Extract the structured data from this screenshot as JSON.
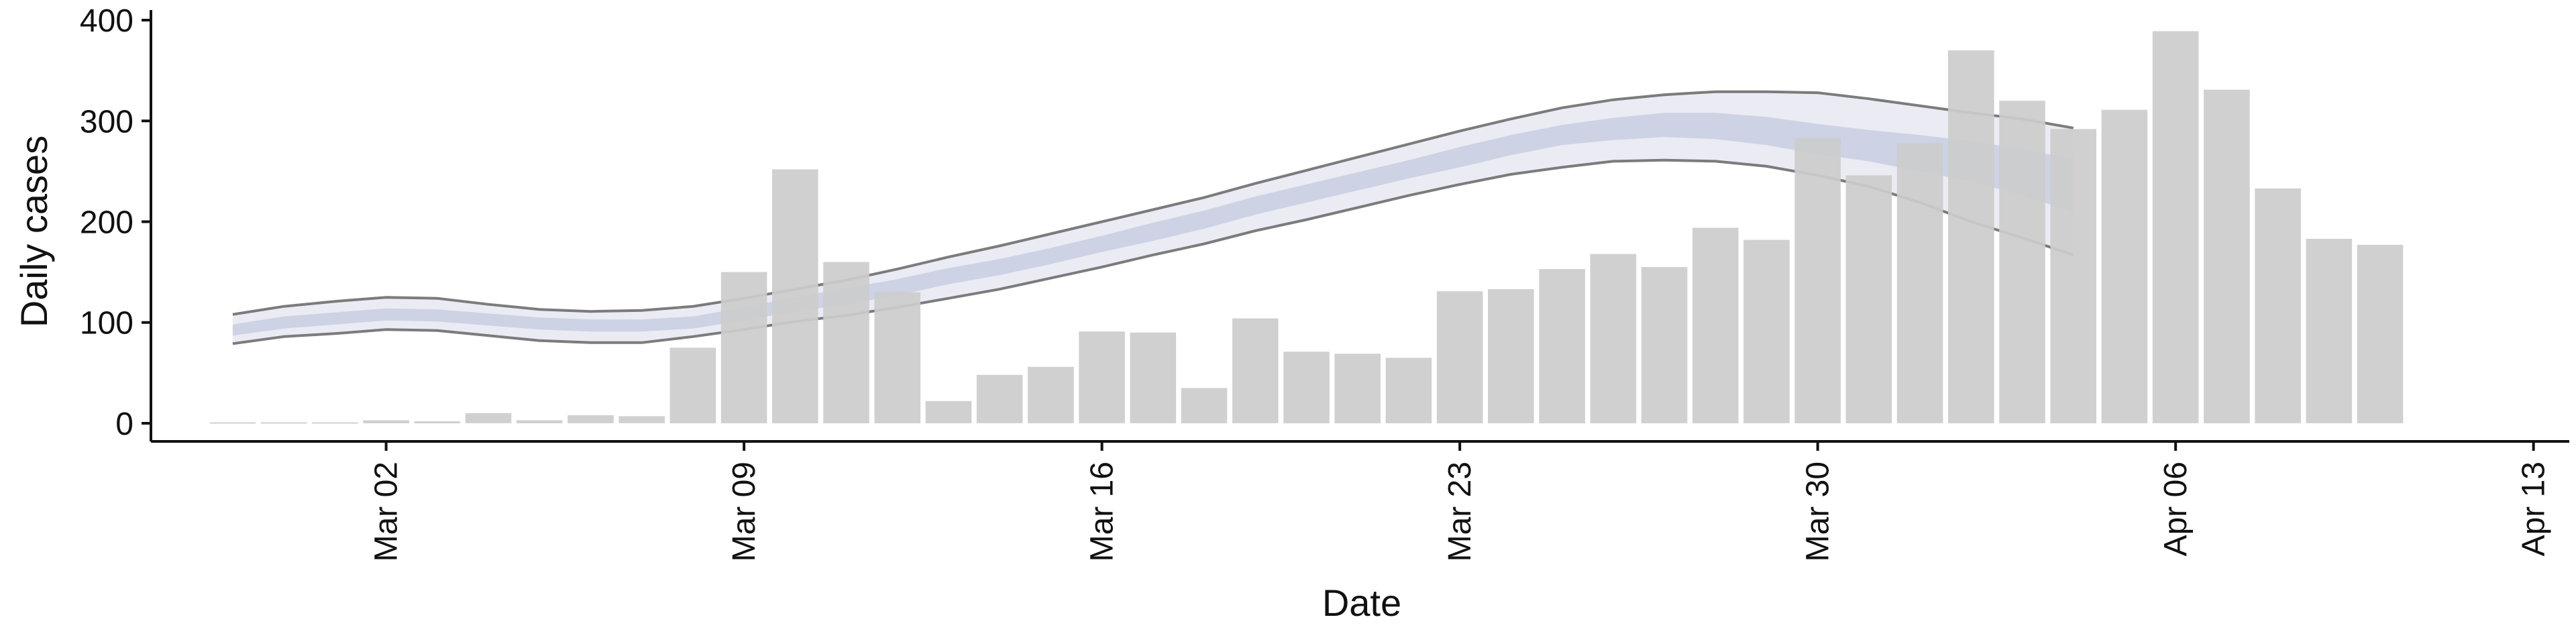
{
  "chart_data": {
    "type": "bar",
    "title": "",
    "xlabel": "Date",
    "ylabel": "Daily cases",
    "ylim": [
      -18,
      410
    ],
    "y_ticks": [
      0,
      100,
      200,
      300,
      400
    ],
    "x_start": "2020-02-28",
    "x_range_days": [
      -1.6,
      45.7
    ],
    "x_ticks": [
      {
        "label": "Mar 02",
        "day": 3
      },
      {
        "label": "Mar 09",
        "day": 10
      },
      {
        "label": "Mar 16",
        "day": 17
      },
      {
        "label": "Mar 23",
        "day": 24
      },
      {
        "label": "Mar 30",
        "day": 31
      },
      {
        "label": "Apr 06",
        "day": 38
      },
      {
        "label": "Apr 13",
        "day": 45
      }
    ],
    "bars": {
      "color": "#cccccc",
      "dates": [
        "Feb 28",
        "Feb 29",
        "Mar 01",
        "Mar 02",
        "Mar 03",
        "Mar 04",
        "Mar 05",
        "Mar 06",
        "Mar 07",
        "Mar 08",
        "Mar 09",
        "Mar 10",
        "Mar 11",
        "Mar 12",
        "Mar 13",
        "Mar 14",
        "Mar 15",
        "Mar 16",
        "Mar 17",
        "Mar 18",
        "Mar 19",
        "Mar 20",
        "Mar 21",
        "Mar 22",
        "Mar 23",
        "Mar 24",
        "Mar 25",
        "Mar 26",
        "Mar 27",
        "Mar 28",
        "Mar 29",
        "Mar 30",
        "Mar 31",
        "Apr 01",
        "Apr 02",
        "Apr 03",
        "Apr 04",
        "Apr 05",
        "Apr 06",
        "Apr 07",
        "Apr 08",
        "Apr 09",
        "Apr 10",
        "Apr 11",
        "Apr 12"
      ],
      "values": [
        1,
        1,
        1,
        3,
        2,
        10,
        3,
        8,
        7,
        75,
        150,
        252,
        160,
        130,
        22,
        48,
        56,
        91,
        90,
        35,
        104,
        71,
        69,
        65,
        131,
        133,
        153,
        168,
        155,
        194,
        182,
        283,
        246,
        278,
        370,
        320,
        292,
        311,
        389,
        331,
        233,
        183,
        177,
        0,
        0
      ]
    },
    "estimate_band": {
      "days": [
        0,
        1,
        2,
        3,
        4,
        5,
        6,
        7,
        8,
        9,
        10,
        11,
        12,
        13,
        14,
        15,
        16,
        17,
        18,
        19,
        20,
        21,
        22,
        23,
        24,
        25,
        26,
        27,
        28,
        29,
        30,
        31,
        32,
        33,
        34,
        35,
        36
      ],
      "median": [
        92,
        100,
        104,
        108,
        107,
        103,
        99,
        97,
        97,
        100,
        108,
        118,
        126,
        135,
        146,
        155,
        166,
        178,
        190,
        202,
        216,
        228,
        240,
        252,
        264,
        276,
        286,
        292,
        296,
        295,
        290,
        282,
        275,
        269,
        262,
        252,
        238
      ],
      "inner_lower": [
        87,
        94,
        98,
        102,
        101,
        97,
        93,
        91,
        91,
        94,
        102,
        111,
        118,
        127,
        138,
        147,
        158,
        170,
        181,
        193,
        207,
        219,
        231,
        243,
        254,
        266,
        276,
        281,
        284,
        282,
        276,
        267,
        260,
        250,
        240,
        226,
        210
      ],
      "inner_upper": [
        98,
        106,
        110,
        114,
        113,
        109,
        105,
        103,
        103,
        106,
        115,
        125,
        134,
        143,
        154,
        163,
        174,
        186,
        199,
        211,
        225,
        237,
        249,
        261,
        274,
        286,
        296,
        303,
        308,
        308,
        304,
        297,
        291,
        286,
        280,
        272,
        262
      ],
      "outer_lower": [
        79,
        86,
        89,
        93,
        92,
        87,
        82,
        80,
        80,
        86,
        93,
        101,
        107,
        115,
        124,
        133,
        144,
        155,
        167,
        178,
        191,
        202,
        214,
        226,
        237,
        247,
        254,
        260,
        261,
        260,
        255,
        246,
        235,
        219,
        200,
        184,
        167
      ],
      "outer_upper": [
        108,
        116,
        121,
        125,
        124,
        118,
        113,
        111,
        112,
        116,
        124,
        133,
        142,
        153,
        165,
        176,
        188,
        200,
        212,
        224,
        238,
        251,
        264,
        277,
        290,
        302,
        313,
        321,
        326,
        329,
        329,
        328,
        322,
        315,
        308,
        302,
        293
      ],
      "outer_color": "#e6e8f1",
      "inner_color": "#c8cee0",
      "line_color": "#666666"
    }
  }
}
